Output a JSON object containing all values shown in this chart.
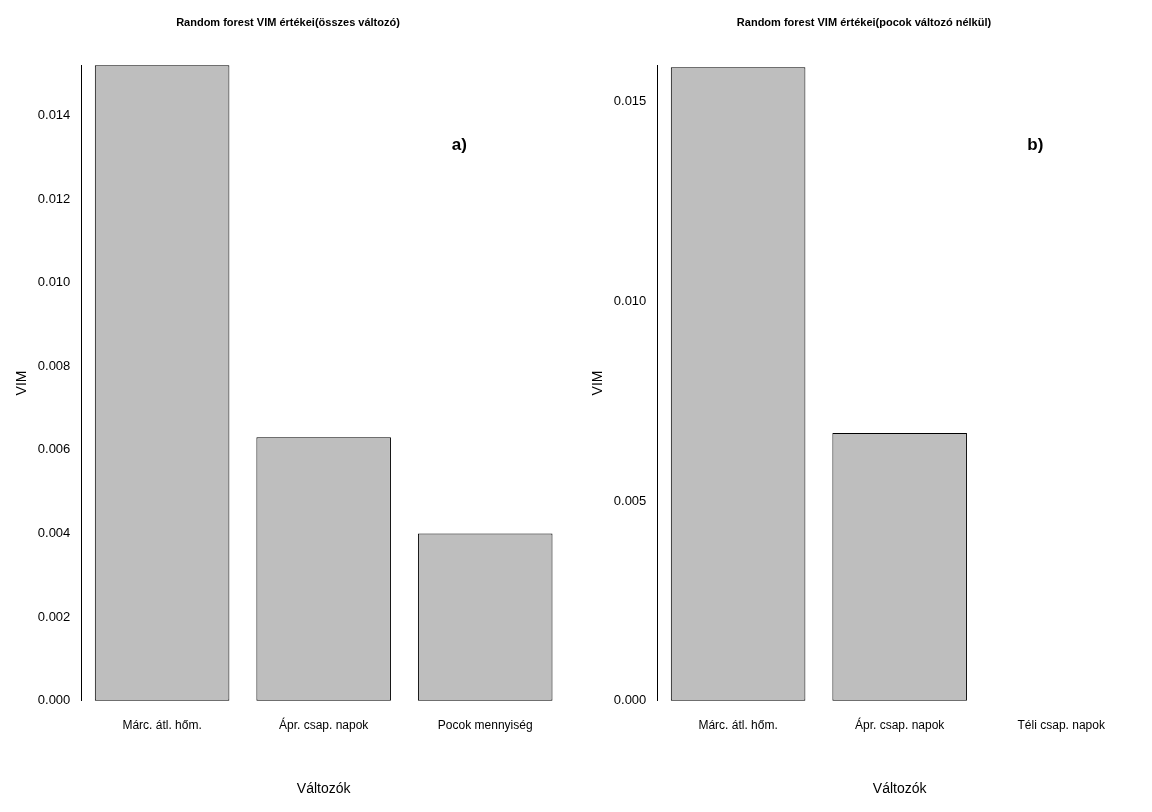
{
  "chart_data": [
    {
      "type": "bar",
      "title": "Random forest VIM értékei(összes változó)",
      "xlabel": "Változók",
      "ylabel": "VIM",
      "categories": [
        "Márc. átl. hőm.",
        "Ápr. csap. napok",
        "Pocok mennyiség"
      ],
      "values": [
        0.0152,
        0.0063,
        0.004
      ],
      "color": "#bebebe",
      "ylim": [
        0,
        0.0152
      ],
      "yticks": [
        {
          "value": 0,
          "label": "0.000"
        },
        {
          "value": 0.002,
          "label": "0.002"
        },
        {
          "value": 0.004,
          "label": "0.004"
        },
        {
          "value": 0.006,
          "label": "0.006"
        },
        {
          "value": 0.008,
          "label": "0.008"
        },
        {
          "value": 0.01,
          "label": "0.010"
        },
        {
          "value": 0.012,
          "label": "0.012"
        },
        {
          "value": 0.014,
          "label": "0.014"
        }
      ],
      "grid": false,
      "legend": false,
      "annotations": [
        "a)"
      ]
    },
    {
      "type": "bar",
      "title": "Random forest VIM értékei(pocok változó nélkül)",
      "xlabel": "Változók",
      "ylabel": "VIM",
      "categories": [
        "Márc. átl. hőm.",
        "Ápr. csap. napok",
        "Téli csap. napok"
      ],
      "values": [
        0.01585,
        0.0067,
        0
      ],
      "color": "#bebebe",
      "ylim": [
        0,
        0.0159
      ],
      "yticks": [
        {
          "value": 0,
          "label": "0.000"
        },
        {
          "value": 0.005,
          "label": "0.005"
        },
        {
          "value": 0.01,
          "label": "0.010"
        },
        {
          "value": 0.015,
          "label": "0.015"
        }
      ],
      "grid": false,
      "legend": false,
      "annotations": [
        "b)"
      ]
    }
  ]
}
